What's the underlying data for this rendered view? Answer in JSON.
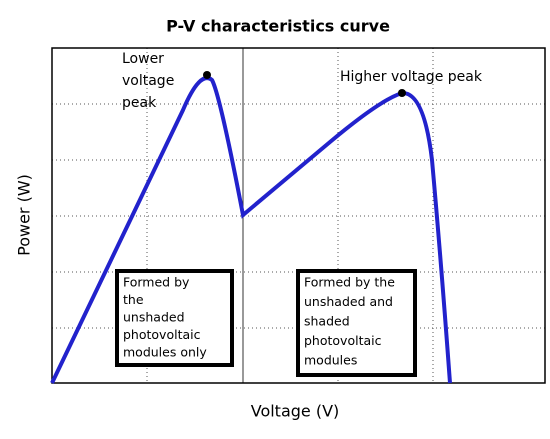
{
  "chart_data": {
    "type": "line",
    "title": "P-V characteristics curve",
    "x_label": "Voltage (V)",
    "y_label": "Power (W)",
    "annotations": [
      {
        "lines": [
          "Lower",
          "voltage",
          "peak"
        ]
      },
      {
        "lines": [
          "Higher voltage peak"
        ]
      },
      {
        "lines": [
          "Formed by",
          "the",
          "unshaded",
          "photovoltaic",
          "modules only"
        ]
      },
      {
        "lines": [
          "Formed by the",
          "unshaded and",
          "shaded",
          "photovoltaic",
          "modules"
        ]
      }
    ]
  }
}
